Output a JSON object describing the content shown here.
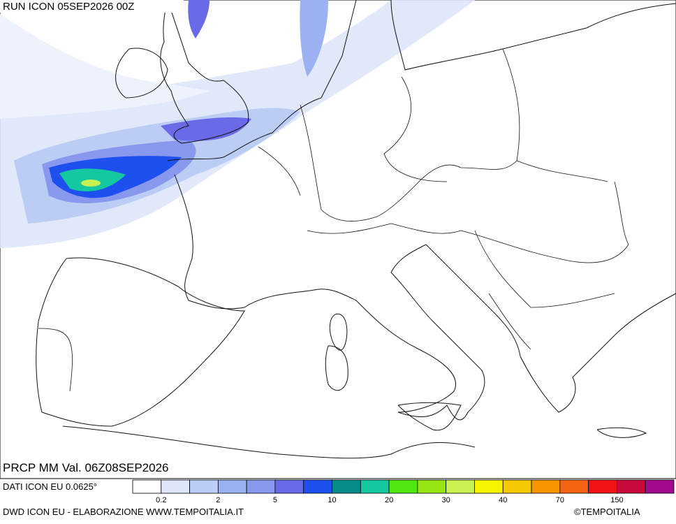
{
  "header": {
    "run": "RUN ICON 05SEP2026 00Z",
    "field": "PRCP MM Val. 06Z08SEP2026"
  },
  "footer": {
    "source": "DATI ICON EU 0.0625°",
    "credit": "DWD ICON EU - ELABORAZIONE WWW.TEMPOITALIA.IT",
    "copyright": "©TEMPOITALIA"
  },
  "legend": {
    "colors": [
      "#ffffff",
      "#dde6f8",
      "#bccdf5",
      "#9bb2f2",
      "#8898ee",
      "#6a6ae8",
      "#1e50f0",
      "#0a8c8c",
      "#14c8a0",
      "#50e614",
      "#96e614",
      "#c8f050",
      "#f5f500",
      "#f5c800",
      "#f59600",
      "#f56414",
      "#f01414",
      "#c80a3c",
      "#a00a8c"
    ],
    "ticks": [
      0.2,
      2,
      5,
      10,
      20,
      30,
      40,
      70,
      150
    ]
  }
}
